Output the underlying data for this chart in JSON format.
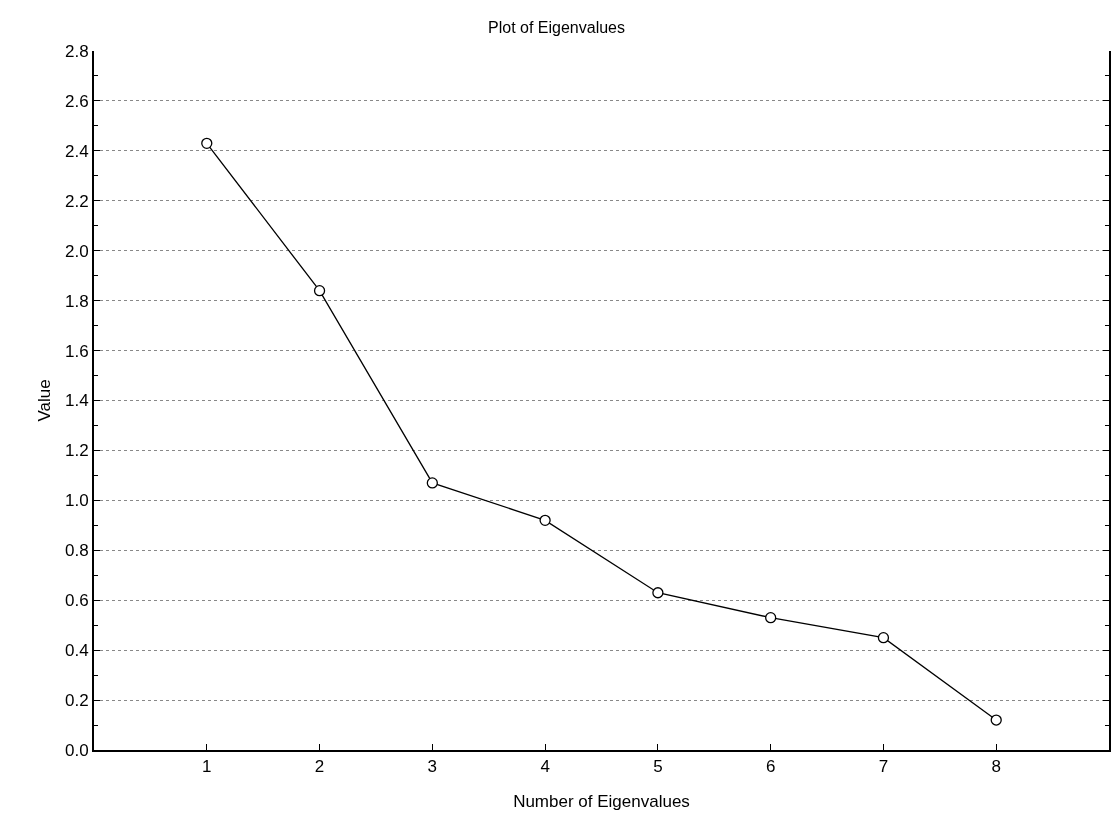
{
  "chart_data": {
    "type": "line",
    "title": "Plot of Eigenvalues",
    "xlabel": "Number of Eigenvalues",
    "ylabel": "Value",
    "x": [
      1,
      2,
      3,
      4,
      5,
      6,
      7,
      8
    ],
    "series": [
      {
        "color": "#000000",
        "values": [
          2.43,
          1.84,
          1.07,
          0.92,
          0.63,
          0.53,
          0.45,
          0.12
        ]
      }
    ],
    "xlim": [
      0,
      9
    ],
    "xticks": [
      1,
      2,
      3,
      4,
      5,
      6,
      7,
      8
    ],
    "ylim": [
      0,
      2.8
    ],
    "yticks": [
      {
        "value": 0,
        "label": "0.0"
      },
      {
        "value": 0.1,
        "label": null
      },
      0.2,
      {
        "value": 0.3,
        "label": null
      },
      0.4,
      {
        "value": 0.5,
        "label": null
      },
      0.6,
      {
        "value": 0.7,
        "label": null
      },
      0.8,
      {
        "value": 0.9,
        "label": null
      },
      {
        "value": 1,
        "label": "1.0"
      },
      {
        "value": 1.1,
        "label": null
      },
      1.2,
      {
        "value": 1.3,
        "label": null
      },
      1.4,
      {
        "value": 1.5,
        "label": null
      },
      1.6,
      {
        "value": 1.7,
        "label": null
      },
      1.8,
      {
        "value": 1.9,
        "label": null
      },
      {
        "value": 2,
        "label": "2.0"
      },
      {
        "value": 2.1,
        "label": null
      },
      2.2,
      {
        "value": 2.3,
        "label": null
      },
      2.4,
      {
        "value": 2.5,
        "label": null
      },
      2.6,
      {
        "value": 2.7,
        "label": null
      },
      2.8
    ],
    "grid": "y",
    "marker": "circle",
    "line_style": "solid"
  }
}
